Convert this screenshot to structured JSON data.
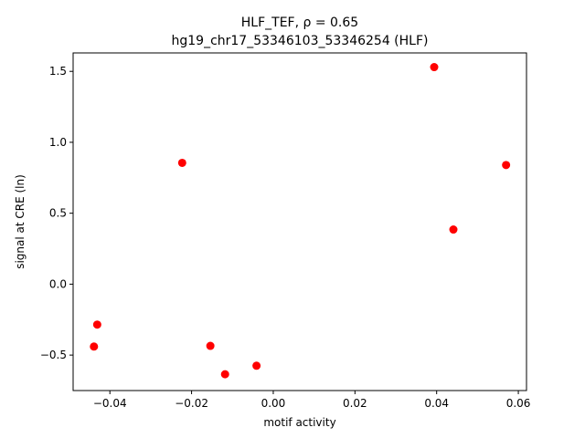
{
  "chart_data": {
    "type": "scatter",
    "title": "HLF_TEF, ρ = 0.65",
    "subtitle": "hg19_chr17_53346103_53346254 (HLF)",
    "xlabel": "motif activity",
    "ylabel": "signal at CRE (ln)",
    "xlim": [
      -0.049,
      0.062
    ],
    "ylim": [
      -0.75,
      1.63
    ],
    "xticks": [
      -0.04,
      -0.02,
      0.0,
      0.02,
      0.04,
      0.06
    ],
    "xtick_labels": [
      "−0.04",
      "−0.02",
      "0.00",
      "0.02",
      "0.04",
      "0.06"
    ],
    "yticks": [
      -0.5,
      0.0,
      0.5,
      1.0,
      1.5
    ],
    "ytick_labels": [
      "−0.5",
      "0.0",
      "0.5",
      "1.0",
      "1.5"
    ],
    "grid": false,
    "marker_color": "#ff0000",
    "points": [
      {
        "x": -0.0439,
        "y": -0.44
      },
      {
        "x": -0.0431,
        "y": -0.285
      },
      {
        "x": -0.0223,
        "y": 0.855
      },
      {
        "x": -0.0154,
        "y": -0.435
      },
      {
        "x": -0.0118,
        "y": -0.635
      },
      {
        "x": -0.0041,
        "y": -0.575
      },
      {
        "x": 0.0394,
        "y": 1.53
      },
      {
        "x": 0.0441,
        "y": 0.385
      },
      {
        "x": 0.057,
        "y": 0.84
      }
    ]
  }
}
